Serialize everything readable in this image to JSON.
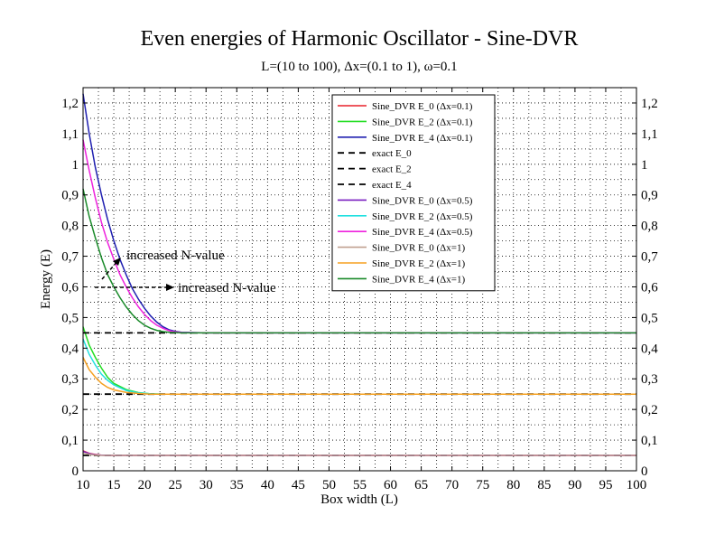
{
  "chart_data": {
    "type": "line",
    "title": "Even energies of Harmonic Oscillator - Sine-DVR",
    "subtitle": "L=(10 to 100), Δx=(0.1 to 1), ω=0.1",
    "xlabel": "Box width (L)",
    "ylabel": "Energy (E)",
    "xlim": [
      10,
      100
    ],
    "ylim": [
      0,
      1.25
    ],
    "x_ticks": [
      10,
      15,
      20,
      25,
      30,
      35,
      40,
      45,
      50,
      55,
      60,
      65,
      70,
      75,
      80,
      85,
      90,
      95,
      100
    ],
    "y_ticks": [
      "0",
      "0,1",
      "0,2",
      "0,3",
      "0,4",
      "0,5",
      "0,6",
      "0,7",
      "0,8",
      "0,9",
      "1",
      "1,1",
      "1,2"
    ],
    "y_tick_values": [
      0,
      0.1,
      0.2,
      0.3,
      0.4,
      0.5,
      0.6,
      0.7,
      0.8,
      0.9,
      1.0,
      1.1,
      1.2
    ],
    "grid": true,
    "legend_position": "top-right",
    "annotations": [
      {
        "text": "increased N-value",
        "x": 17,
        "y": 0.7
      },
      {
        "text": "increased N-value",
        "x": 25,
        "y": 0.59
      }
    ],
    "series": [
      {
        "name": "Sine_DVR E_0 (Δx=0.1)",
        "color": "#e8202a",
        "dashed": false,
        "x": [
          10,
          11,
          12,
          13,
          14,
          15,
          20,
          30,
          50,
          100
        ],
        "y": [
          0.065,
          0.057,
          0.053,
          0.051,
          0.05,
          0.05,
          0.05,
          0.05,
          0.05,
          0.05
        ]
      },
      {
        "name": "Sine_DVR E_2 (Δx=0.1)",
        "color": "#22dd22",
        "dashed": false,
        "x": [
          10,
          11,
          12,
          13,
          14,
          15,
          17,
          19,
          21,
          23,
          25,
          30,
          50,
          100
        ],
        "y": [
          0.47,
          0.41,
          0.37,
          0.335,
          0.305,
          0.285,
          0.265,
          0.255,
          0.251,
          0.25,
          0.25,
          0.25,
          0.25,
          0.25
        ]
      },
      {
        "name": "Sine_DVR E_4 (Δx=0.1)",
        "color": "#1f1fb0",
        "dashed": false,
        "x": [
          10,
          11,
          12,
          13,
          14,
          15,
          16,
          17,
          18,
          19,
          20,
          21,
          22,
          23,
          24,
          25,
          26,
          30,
          50,
          100
        ],
        "y": [
          1.23,
          1.1,
          0.99,
          0.9,
          0.82,
          0.75,
          0.69,
          0.64,
          0.595,
          0.56,
          0.53,
          0.505,
          0.485,
          0.47,
          0.46,
          0.455,
          0.452,
          0.45,
          0.45,
          0.45
        ]
      },
      {
        "name": "exact E_0",
        "color": "#000000",
        "dashed": true,
        "x": [
          10,
          100
        ],
        "y": [
          0.05,
          0.05
        ]
      },
      {
        "name": "exact E_2",
        "color": "#000000",
        "dashed": true,
        "x": [
          10,
          100
        ],
        "y": [
          0.25,
          0.25
        ]
      },
      {
        "name": "exact E_4",
        "color": "#000000",
        "dashed": true,
        "x": [
          10,
          100
        ],
        "y": [
          0.45,
          0.45
        ]
      },
      {
        "name": "Sine_DVR E_0 (Δx=0.5)",
        "color": "#7a1fc0",
        "dashed": false,
        "x": [
          10,
          11,
          12,
          13,
          14,
          15,
          20,
          100
        ],
        "y": [
          0.063,
          0.056,
          0.052,
          0.051,
          0.05,
          0.05,
          0.05,
          0.05
        ]
      },
      {
        "name": "Sine_DVR E_2 (Δx=0.5)",
        "color": "#22e0e0",
        "dashed": false,
        "x": [
          10,
          11,
          12,
          13,
          14,
          15,
          17,
          19,
          21,
          23,
          25,
          30,
          100
        ],
        "y": [
          0.43,
          0.38,
          0.345,
          0.315,
          0.295,
          0.28,
          0.262,
          0.254,
          0.251,
          0.25,
          0.25,
          0.25,
          0.25
        ]
      },
      {
        "name": "Sine_DVR E_4 (Δx=0.5)",
        "color": "#ee22dd",
        "dashed": false,
        "x": [
          10,
          11,
          12,
          13,
          14,
          15,
          16,
          17,
          18,
          19,
          20,
          21,
          22,
          23,
          24,
          25,
          26,
          30,
          100
        ],
        "y": [
          1.08,
          0.98,
          0.89,
          0.81,
          0.745,
          0.69,
          0.64,
          0.6,
          0.565,
          0.535,
          0.51,
          0.49,
          0.475,
          0.465,
          0.457,
          0.453,
          0.451,
          0.45,
          0.45
        ]
      },
      {
        "name": "Sine_DVR E_0 (Δx=1)",
        "color": "#c0a090",
        "dashed": false,
        "x": [
          10,
          11,
          12,
          13,
          14,
          15,
          20,
          100
        ],
        "y": [
          0.058,
          0.054,
          0.051,
          0.05,
          0.05,
          0.05,
          0.05,
          0.05
        ]
      },
      {
        "name": "Sine_DVR E_2 (Δx=1)",
        "color": "#f5a020",
        "dashed": false,
        "x": [
          10,
          11,
          12,
          13,
          14,
          15,
          17,
          19,
          21,
          23,
          25,
          30,
          100
        ],
        "y": [
          0.37,
          0.33,
          0.305,
          0.285,
          0.272,
          0.264,
          0.256,
          0.252,
          0.25,
          0.25,
          0.25,
          0.25,
          0.25
        ]
      },
      {
        "name": "Sine_DVR E_4 (Δx=1)",
        "color": "#1a8a2a",
        "dashed": false,
        "x": [
          10,
          11,
          12,
          13,
          14,
          15,
          16,
          17,
          18,
          19,
          20,
          21,
          22,
          23,
          24,
          25,
          26,
          30,
          100
        ],
        "y": [
          0.92,
          0.83,
          0.76,
          0.695,
          0.64,
          0.6,
          0.565,
          0.535,
          0.51,
          0.49,
          0.475,
          0.465,
          0.458,
          0.454,
          0.452,
          0.451,
          0.45,
          0.45,
          0.45
        ]
      }
    ]
  }
}
